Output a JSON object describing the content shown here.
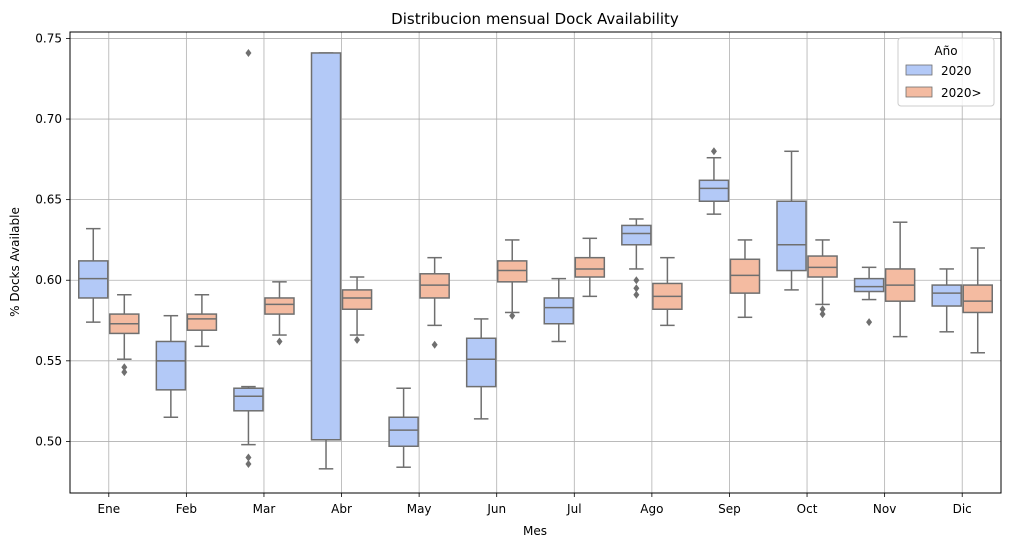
{
  "chart_data": {
    "type": "boxplot",
    "title": "Distribucion mensual Dock Availability",
    "xlabel": "Mes",
    "ylabel": "% Docks Available",
    "ylim": [
      0.468,
      0.754
    ],
    "yticks": [
      "0.50",
      "0.55",
      "0.60",
      "0.65",
      "0.70",
      "0.75"
    ],
    "ytick_values": [
      0.5,
      0.55,
      0.6,
      0.65,
      0.7,
      0.75
    ],
    "grid": true,
    "categories": [
      "Ene",
      "Feb",
      "Mar",
      "Abr",
      "May",
      "Jun",
      "Jul",
      "Ago",
      "Sep",
      "Oct",
      "Nov",
      "Dic"
    ],
    "legend": {
      "title": "Año",
      "position": "top-right",
      "entries": [
        "2020",
        "2020>"
      ]
    },
    "colors": {
      "2020": "#b3c9f7",
      "2020>": "#f4bba1",
      "line": "#6f6f6f"
    },
    "series": [
      {
        "name": "2020",
        "boxes": [
          {
            "whislo": 0.574,
            "q1": 0.589,
            "med": 0.601,
            "q3": 0.612,
            "whishi": 0.632,
            "fliers": []
          },
          {
            "whislo": 0.515,
            "q1": 0.532,
            "med": 0.55,
            "q3": 0.562,
            "whishi": 0.578,
            "fliers": []
          },
          {
            "whislo": 0.498,
            "q1": 0.519,
            "med": 0.528,
            "q3": 0.533,
            "whishi": 0.534,
            "fliers": [
              0.49,
              0.486,
              0.741
            ]
          },
          {
            "whislo": 0.483,
            "q1": 0.501,
            "med": 0.501,
            "q3": 0.741,
            "whishi": 0.741,
            "fliers": []
          },
          {
            "whislo": 0.484,
            "q1": 0.497,
            "med": 0.507,
            "q3": 0.515,
            "whishi": 0.533,
            "fliers": []
          },
          {
            "whislo": 0.514,
            "q1": 0.534,
            "med": 0.551,
            "q3": 0.564,
            "whishi": 0.576,
            "fliers": []
          },
          {
            "whislo": 0.562,
            "q1": 0.573,
            "med": 0.583,
            "q3": 0.589,
            "whishi": 0.601,
            "fliers": []
          },
          {
            "whislo": 0.607,
            "q1": 0.622,
            "med": 0.629,
            "q3": 0.634,
            "whishi": 0.638,
            "fliers": [
              0.6,
              0.595,
              0.591
            ]
          },
          {
            "whislo": 0.641,
            "q1": 0.649,
            "med": 0.657,
            "q3": 0.662,
            "whishi": 0.676,
            "fliers": [
              0.68
            ]
          },
          {
            "whislo": 0.594,
            "q1": 0.606,
            "med": 0.622,
            "q3": 0.649,
            "whishi": 0.68,
            "fliers": []
          },
          {
            "whislo": 0.588,
            "q1": 0.593,
            "med": 0.596,
            "q3": 0.601,
            "whishi": 0.608,
            "fliers": [
              0.574
            ]
          },
          {
            "whislo": 0.568,
            "q1": 0.584,
            "med": 0.592,
            "q3": 0.597,
            "whishi": 0.607,
            "fliers": []
          }
        ]
      },
      {
        "name": "2020>",
        "boxes": [
          {
            "whislo": 0.551,
            "q1": 0.567,
            "med": 0.573,
            "q3": 0.579,
            "whishi": 0.591,
            "fliers": [
              0.546,
              0.543
            ]
          },
          {
            "whislo": 0.559,
            "q1": 0.569,
            "med": 0.576,
            "q3": 0.579,
            "whishi": 0.591,
            "fliers": []
          },
          {
            "whislo": 0.566,
            "q1": 0.579,
            "med": 0.585,
            "q3": 0.589,
            "whishi": 0.599,
            "fliers": [
              0.562
            ]
          },
          {
            "whislo": 0.566,
            "q1": 0.582,
            "med": 0.589,
            "q3": 0.594,
            "whishi": 0.602,
            "fliers": [
              0.563
            ]
          },
          {
            "whislo": 0.572,
            "q1": 0.589,
            "med": 0.597,
            "q3": 0.604,
            "whishi": 0.614,
            "fliers": [
              0.56
            ]
          },
          {
            "whislo": 0.58,
            "q1": 0.599,
            "med": 0.606,
            "q3": 0.612,
            "whishi": 0.625,
            "fliers": [
              0.578
            ]
          },
          {
            "whislo": 0.59,
            "q1": 0.602,
            "med": 0.607,
            "q3": 0.614,
            "whishi": 0.626,
            "fliers": []
          },
          {
            "whislo": 0.572,
            "q1": 0.582,
            "med": 0.59,
            "q3": 0.598,
            "whishi": 0.614,
            "fliers": []
          },
          {
            "whislo": 0.577,
            "q1": 0.592,
            "med": 0.603,
            "q3": 0.613,
            "whishi": 0.625,
            "fliers": []
          },
          {
            "whislo": 0.585,
            "q1": 0.602,
            "med": 0.608,
            "q3": 0.615,
            "whishi": 0.625,
            "fliers": [
              0.582,
              0.579
            ]
          },
          {
            "whislo": 0.565,
            "q1": 0.587,
            "med": 0.597,
            "q3": 0.607,
            "whishi": 0.636,
            "fliers": []
          },
          {
            "whislo": 0.555,
            "q1": 0.58,
            "med": 0.587,
            "q3": 0.597,
            "whishi": 0.62,
            "fliers": []
          }
        ]
      }
    ]
  }
}
